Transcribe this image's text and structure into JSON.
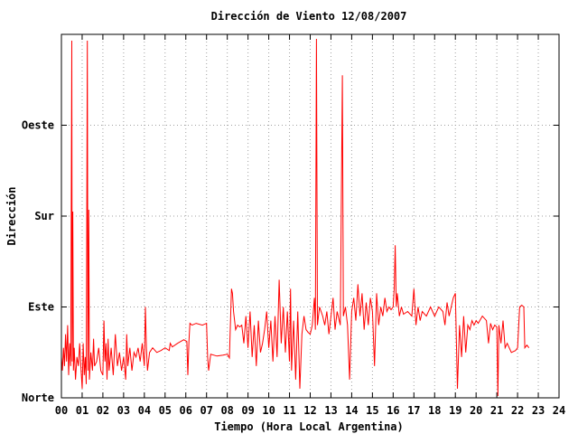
{
  "chart_data": {
    "type": "line",
    "title": "Dirección de Viento 12/08/2007",
    "xlabel": "Tiempo (Hora Local Argentina)",
    "ylabel": "Dirección",
    "xlim": [
      0,
      24
    ],
    "ylim": [
      0,
      400
    ],
    "x_ticks": [
      "00",
      "01",
      "02",
      "03",
      "04",
      "05",
      "06",
      "07",
      "08",
      "09",
      "10",
      "11",
      "12",
      "13",
      "14",
      "15",
      "16",
      "17",
      "18",
      "19",
      "20",
      "21",
      "22",
      "23",
      "24"
    ],
    "y_ticks": [
      {
        "value": 0,
        "label": "Norte"
      },
      {
        "value": 100,
        "label": "Este"
      },
      {
        "value": 200,
        "label": "Sur"
      },
      {
        "value": 300,
        "label": "Oeste"
      }
    ],
    "grid": true,
    "series": [
      {
        "color": "#ff0000",
        "points": [
          [
            0.0,
            45
          ],
          [
            0.05,
            30
          ],
          [
            0.1,
            55
          ],
          [
            0.15,
            35
          ],
          [
            0.2,
            70
          ],
          [
            0.25,
            40
          ],
          [
            0.3,
            80
          ],
          [
            0.35,
            25
          ],
          [
            0.4,
            60
          ],
          [
            0.45,
            35
          ],
          [
            0.5,
            393
          ],
          [
            0.52,
            40
          ],
          [
            0.55,
            205
          ],
          [
            0.58,
            30
          ],
          [
            0.62,
            55
          ],
          [
            0.68,
            20
          ],
          [
            0.75,
            45
          ],
          [
            0.82,
            35
          ],
          [
            0.88,
            60
          ],
          [
            0.95,
            30
          ],
          [
            1.0,
            10
          ],
          [
            1.05,
            60
          ],
          [
            1.1,
            25
          ],
          [
            1.15,
            45
          ],
          [
            1.2,
            15
          ],
          [
            1.25,
            393
          ],
          [
            1.28,
            30
          ],
          [
            1.32,
            207
          ],
          [
            1.35,
            20
          ],
          [
            1.42,
            50
          ],
          [
            1.5,
            30
          ],
          [
            1.55,
            65
          ],
          [
            1.6,
            35
          ],
          [
            1.7,
            40
          ],
          [
            1.8,
            55
          ],
          [
            1.9,
            30
          ],
          [
            2.0,
            25
          ],
          [
            2.05,
            85
          ],
          [
            2.1,
            40
          ],
          [
            2.15,
            60
          ],
          [
            2.2,
            20
          ],
          [
            2.25,
            65
          ],
          [
            2.3,
            30
          ],
          [
            2.4,
            55
          ],
          [
            2.5,
            25
          ],
          [
            2.6,
            70
          ],
          [
            2.7,
            35
          ],
          [
            2.8,
            50
          ],
          [
            2.9,
            30
          ],
          [
            3.0,
            45
          ],
          [
            3.1,
            20
          ],
          [
            3.15,
            70
          ],
          [
            3.2,
            35
          ],
          [
            3.3,
            55
          ],
          [
            3.4,
            30
          ],
          [
            3.5,
            50
          ],
          [
            3.6,
            45
          ],
          [
            3.7,
            55
          ],
          [
            3.8,
            40
          ],
          [
            3.9,
            60
          ],
          [
            4.0,
            35
          ],
          [
            4.05,
            100
          ],
          [
            4.1,
            55
          ],
          [
            4.15,
            30
          ],
          [
            4.25,
            50
          ],
          [
            4.4,
            55
          ],
          [
            4.6,
            50
          ],
          [
            4.8,
            52
          ],
          [
            5.0,
            55
          ],
          [
            5.2,
            52
          ],
          [
            5.25,
            60
          ],
          [
            5.35,
            56
          ],
          [
            5.6,
            60
          ],
          [
            5.9,
            64
          ],
          [
            6.05,
            62
          ],
          [
            6.1,
            25
          ],
          [
            6.15,
            62
          ],
          [
            6.2,
            82
          ],
          [
            6.3,
            80
          ],
          [
            6.5,
            82
          ],
          [
            6.8,
            80
          ],
          [
            7.0,
            82
          ],
          [
            7.05,
            45
          ],
          [
            7.1,
            30
          ],
          [
            7.2,
            48
          ],
          [
            7.5,
            46
          ],
          [
            7.8,
            47
          ],
          [
            8.0,
            48
          ],
          [
            8.1,
            44
          ],
          [
            8.2,
            120
          ],
          [
            8.25,
            115
          ],
          [
            8.3,
            95
          ],
          [
            8.4,
            75
          ],
          [
            8.5,
            80
          ],
          [
            8.6,
            78
          ],
          [
            8.7,
            80
          ],
          [
            8.8,
            60
          ],
          [
            8.9,
            90
          ],
          [
            9.0,
            55
          ],
          [
            9.1,
            95
          ],
          [
            9.2,
            45
          ],
          [
            9.3,
            80
          ],
          [
            9.4,
            35
          ],
          [
            9.5,
            85
          ],
          [
            9.6,
            50
          ],
          [
            9.7,
            60
          ],
          [
            9.8,
            75
          ],
          [
            9.9,
            95
          ],
          [
            10.0,
            55
          ],
          [
            10.1,
            85
          ],
          [
            10.2,
            40
          ],
          [
            10.3,
            90
          ],
          [
            10.4,
            45
          ],
          [
            10.5,
            130
          ],
          [
            10.6,
            60
          ],
          [
            10.7,
            100
          ],
          [
            10.8,
            50
          ],
          [
            10.9,
            95
          ],
          [
            11.0,
            40
          ],
          [
            11.05,
            120
          ],
          [
            11.1,
            30
          ],
          [
            11.2,
            85
          ],
          [
            11.3,
            20
          ],
          [
            11.4,
            95
          ],
          [
            11.5,
            10
          ],
          [
            11.6,
            70
          ],
          [
            11.7,
            90
          ],
          [
            11.8,
            75
          ],
          [
            11.9,
            72
          ],
          [
            12.0,
            70
          ],
          [
            12.1,
            80
          ],
          [
            12.2,
            110
          ],
          [
            12.25,
            75
          ],
          [
            12.3,
            395
          ],
          [
            12.35,
            80
          ],
          [
            12.45,
            100
          ],
          [
            12.6,
            90
          ],
          [
            12.7,
            80
          ],
          [
            12.8,
            95
          ],
          [
            12.9,
            70
          ],
          [
            13.0,
            90
          ],
          [
            13.1,
            110
          ],
          [
            13.2,
            75
          ],
          [
            13.3,
            95
          ],
          [
            13.45,
            80
          ],
          [
            13.55,
            355
          ],
          [
            13.6,
            90
          ],
          [
            13.7,
            100
          ],
          [
            13.8,
            80
          ],
          [
            13.9,
            20
          ],
          [
            14.0,
            95
          ],
          [
            14.1,
            110
          ],
          [
            14.2,
            85
          ],
          [
            14.3,
            125
          ],
          [
            14.4,
            90
          ],
          [
            14.5,
            115
          ],
          [
            14.6,
            75
          ],
          [
            14.7,
            105
          ],
          [
            14.8,
            80
          ],
          [
            14.9,
            110
          ],
          [
            15.0,
            95
          ],
          [
            15.1,
            35
          ],
          [
            15.2,
            115
          ],
          [
            15.3,
            80
          ],
          [
            15.4,
            100
          ],
          [
            15.5,
            90
          ],
          [
            15.6,
            110
          ],
          [
            15.7,
            95
          ],
          [
            15.8,
            100
          ],
          [
            15.9,
            97
          ],
          [
            16.0,
            100
          ],
          [
            16.05,
            120
          ],
          [
            16.1,
            168
          ],
          [
            16.15,
            100
          ],
          [
            16.2,
            115
          ],
          [
            16.3,
            90
          ],
          [
            16.4,
            100
          ],
          [
            16.5,
            92
          ],
          [
            16.7,
            95
          ],
          [
            16.9,
            90
          ],
          [
            17.0,
            120
          ],
          [
            17.1,
            80
          ],
          [
            17.2,
            100
          ],
          [
            17.3,
            85
          ],
          [
            17.4,
            95
          ],
          [
            17.6,
            90
          ],
          [
            17.8,
            100
          ],
          [
            18.0,
            90
          ],
          [
            18.2,
            100
          ],
          [
            18.4,
            95
          ],
          [
            18.5,
            80
          ],
          [
            18.6,
            105
          ],
          [
            18.7,
            90
          ],
          [
            18.8,
            100
          ],
          [
            18.9,
            110
          ],
          [
            19.0,
            115
          ],
          [
            19.05,
            60
          ],
          [
            19.1,
            10
          ],
          [
            19.2,
            80
          ],
          [
            19.3,
            45
          ],
          [
            19.4,
            90
          ],
          [
            19.5,
            50
          ],
          [
            19.6,
            80
          ],
          [
            19.7,
            75
          ],
          [
            19.8,
            85
          ],
          [
            19.9,
            80
          ],
          [
            20.0,
            85
          ],
          [
            20.1,
            82
          ],
          [
            20.3,
            90
          ],
          [
            20.5,
            85
          ],
          [
            20.6,
            60
          ],
          [
            20.7,
            82
          ],
          [
            20.8,
            75
          ],
          [
            20.9,
            80
          ],
          [
            21.0,
            78
          ],
          [
            21.05,
            2
          ],
          [
            21.1,
            80
          ],
          [
            21.2,
            60
          ],
          [
            21.3,
            85
          ],
          [
            21.4,
            55
          ],
          [
            21.5,
            60
          ],
          [
            21.7,
            50
          ],
          [
            21.9,
            52
          ],
          [
            22.0,
            55
          ],
          [
            22.1,
            100
          ],
          [
            22.2,
            102
          ],
          [
            22.3,
            100
          ],
          [
            22.35,
            55
          ],
          [
            22.45,
            58
          ],
          [
            22.55,
            55
          ]
        ]
      }
    ]
  }
}
